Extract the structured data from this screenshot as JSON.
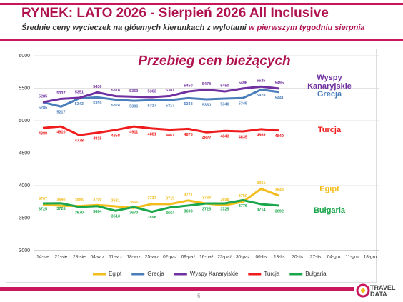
{
  "title": "RYNEK: LATO 2026 - Sierpień 2026 All Inclusive",
  "subtitle": "Średnie ceny wycieczek na głównych kierunkach z wylotami",
  "subtitle_underlined": "w pierwszym tygodniu sierpnia",
  "page_number": "6",
  "logo": [
    "TRAVEL",
    "DATA"
  ],
  "chart_data": {
    "type": "line",
    "title": "Przebieg cen bieżących",
    "categories": [
      "14-sie",
      "21-sie",
      "28-sie",
      "04-wrz",
      "11-wrz",
      "18-wrz",
      "25-wrz",
      "02-paź",
      "09-paź",
      "16-paź",
      "23-paź",
      "30-paź",
      "06-lis",
      "13-lis",
      "20-lis",
      "27-lis",
      "04-gru",
      "11-gru",
      "18-gru"
    ],
    "ylim": [
      3000,
      6000
    ],
    "yticks": [
      3000,
      3500,
      4000,
      4500,
      5000,
      5500,
      6000
    ],
    "grid": true,
    "legend": "bottom",
    "series": [
      {
        "name": "Egipt",
        "color": "#f2bd1d",
        "label_pos": "above",
        "values": [
          3707,
          3690,
          3686,
          3700,
          3681,
          3655,
          3717,
          3715,
          3771,
          3723,
          3698,
          3750,
          3951,
          3843,
          null,
          null,
          null,
          null,
          null
        ]
      },
      {
        "name": "Grecja",
        "color": "#4a7ebb",
        "label_pos": "below",
        "values": [
          5285,
          5217,
          5343,
          5359,
          5324,
          5306,
          5317,
          5317,
          5348,
          5330,
          5340,
          5349,
          5478,
          5441,
          null,
          null,
          null,
          null,
          null
        ]
      },
      {
        "name": "Wyspy Kanaryjskie",
        "color": "#7030a0",
        "label_pos": "above",
        "values": [
          5285,
          5337,
          5351,
          5436,
          5378,
          5369,
          5363,
          5381,
          5450,
          5478,
          5450,
          5496,
          5525,
          5495,
          null,
          null,
          null,
          null,
          null
        ]
      },
      {
        "name": "Turcja",
        "color": "#ee1c1c",
        "label_pos": "below",
        "values": [
          4888,
          4910,
          4778,
          4815,
          4858,
          4911,
          4881,
          4861,
          4875,
          4822,
          4843,
          4835,
          4869,
          4849,
          null,
          null,
          null,
          null,
          null
        ]
      },
      {
        "name": "Bułgaria",
        "color": "#1aa64a",
        "label_pos": "below",
        "values": [
          3725,
          3728,
          3670,
          3684,
          3613,
          3670,
          3598,
          3664,
          3693,
          3725,
          3725,
          3776,
          3714,
          3692,
          null,
          null,
          null,
          null,
          null
        ]
      }
    ],
    "annotations": [
      {
        "text": "Wyspy Kanaryjskie",
        "color": "#7030a0",
        "value": 5590
      },
      {
        "text": "Grecja",
        "color": "#4a7ebb",
        "value": 5410
      },
      {
        "text": "Turcja",
        "color": "#ee1c1c",
        "value": 4860
      },
      {
        "text": "Egipt",
        "color": "#f2bd1d",
        "value": 3940
      },
      {
        "text": "Bułgaria",
        "color": "#1aa64a",
        "value": 3610
      }
    ]
  }
}
